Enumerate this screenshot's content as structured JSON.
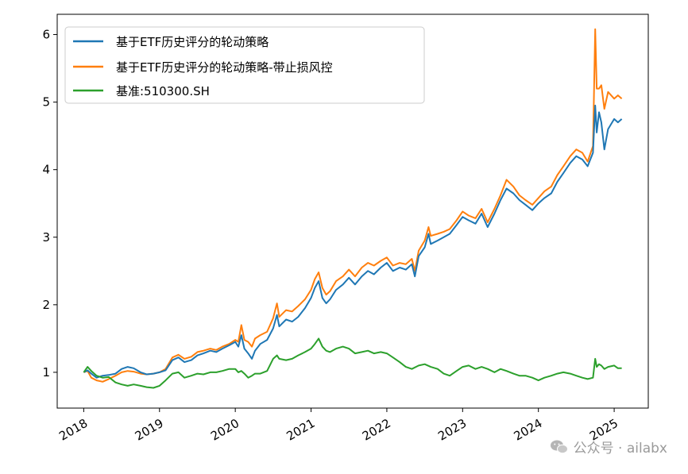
{
  "chart_data": {
    "type": "line",
    "title": "",
    "xlabel": "",
    "ylabel": "",
    "x_ticks": [
      "2018",
      "2019",
      "2020",
      "2021",
      "2022",
      "2023",
      "2024",
      "2025"
    ],
    "y_ticks": [
      "1",
      "2",
      "3",
      "4",
      "5",
      "6"
    ],
    "xlim": [
      2017.65,
      2025.45
    ],
    "ylim": [
      0.47,
      6.3
    ],
    "grid": false,
    "legend_position": "top-left",
    "x_format": "decimal year",
    "series": [
      {
        "name": "基于ETF历史评分的轮动策略",
        "color": "#1f77b4",
        "points": [
          [
            2018.0,
            1.0
          ],
          [
            2018.05,
            1.03
          ],
          [
            2018.1,
            0.98
          ],
          [
            2018.17,
            0.92
          ],
          [
            2018.25,
            0.95
          ],
          [
            2018.33,
            0.96
          ],
          [
            2018.42,
            0.98
          ],
          [
            2018.5,
            1.05
          ],
          [
            2018.58,
            1.08
          ],
          [
            2018.66,
            1.06
          ],
          [
            2018.75,
            1.0
          ],
          [
            2018.83,
            0.97
          ],
          [
            2018.92,
            0.98
          ],
          [
            2019.0,
            1.0
          ],
          [
            2019.08,
            1.03
          ],
          [
            2019.17,
            1.18
          ],
          [
            2019.25,
            1.22
          ],
          [
            2019.33,
            1.15
          ],
          [
            2019.42,
            1.18
          ],
          [
            2019.5,
            1.25
          ],
          [
            2019.58,
            1.28
          ],
          [
            2019.67,
            1.32
          ],
          [
            2019.75,
            1.3
          ],
          [
            2019.83,
            1.35
          ],
          [
            2019.92,
            1.4
          ],
          [
            2020.0,
            1.45
          ],
          [
            2020.04,
            1.38
          ],
          [
            2020.08,
            1.55
          ],
          [
            2020.12,
            1.35
          ],
          [
            2020.17,
            1.28
          ],
          [
            2020.22,
            1.2
          ],
          [
            2020.26,
            1.32
          ],
          [
            2020.33,
            1.42
          ],
          [
            2020.42,
            1.48
          ],
          [
            2020.5,
            1.65
          ],
          [
            2020.55,
            1.85
          ],
          [
            2020.58,
            1.68
          ],
          [
            2020.67,
            1.78
          ],
          [
            2020.75,
            1.75
          ],
          [
            2020.83,
            1.82
          ],
          [
            2020.92,
            1.95
          ],
          [
            2021.0,
            2.1
          ],
          [
            2021.05,
            2.25
          ],
          [
            2021.1,
            2.35
          ],
          [
            2021.15,
            2.1
          ],
          [
            2021.2,
            2.02
          ],
          [
            2021.25,
            2.08
          ],
          [
            2021.33,
            2.22
          ],
          [
            2021.42,
            2.3
          ],
          [
            2021.5,
            2.4
          ],
          [
            2021.58,
            2.3
          ],
          [
            2021.67,
            2.42
          ],
          [
            2021.75,
            2.5
          ],
          [
            2021.83,
            2.45
          ],
          [
            2021.92,
            2.55
          ],
          [
            2022.0,
            2.62
          ],
          [
            2022.08,
            2.5
          ],
          [
            2022.17,
            2.55
          ],
          [
            2022.25,
            2.52
          ],
          [
            2022.33,
            2.6
          ],
          [
            2022.37,
            2.42
          ],
          [
            2022.42,
            2.72
          ],
          [
            2022.5,
            2.85
          ],
          [
            2022.55,
            3.05
          ],
          [
            2022.58,
            2.9
          ],
          [
            2022.67,
            2.95
          ],
          [
            2022.75,
            3.0
          ],
          [
            2022.83,
            3.05
          ],
          [
            2022.92,
            3.18
          ],
          [
            2023.0,
            3.3
          ],
          [
            2023.08,
            3.25
          ],
          [
            2023.17,
            3.2
          ],
          [
            2023.25,
            3.35
          ],
          [
            2023.33,
            3.15
          ],
          [
            2023.42,
            3.35
          ],
          [
            2023.5,
            3.55
          ],
          [
            2023.58,
            3.72
          ],
          [
            2023.67,
            3.65
          ],
          [
            2023.75,
            3.55
          ],
          [
            2023.83,
            3.48
          ],
          [
            2023.92,
            3.4
          ],
          [
            2024.0,
            3.5
          ],
          [
            2024.08,
            3.58
          ],
          [
            2024.17,
            3.65
          ],
          [
            2024.25,
            3.82
          ],
          [
            2024.33,
            3.95
          ],
          [
            2024.42,
            4.1
          ],
          [
            2024.5,
            4.2
          ],
          [
            2024.58,
            4.15
          ],
          [
            2024.65,
            4.05
          ],
          [
            2024.72,
            4.25
          ],
          [
            2024.75,
            4.95
          ],
          [
            2024.77,
            4.55
          ],
          [
            2024.8,
            4.85
          ],
          [
            2024.83,
            4.7
          ],
          [
            2024.87,
            4.3
          ],
          [
            2024.92,
            4.6
          ],
          [
            2025.0,
            4.75
          ],
          [
            2025.05,
            4.7
          ],
          [
            2025.1,
            4.75
          ]
        ]
      },
      {
        "name": "基于ETF历史评分的轮动策略-带止损风控",
        "color": "#ff7f0e",
        "points": [
          [
            2018.0,
            1.0
          ],
          [
            2018.05,
            1.02
          ],
          [
            2018.1,
            0.92
          ],
          [
            2018.17,
            0.88
          ],
          [
            2018.25,
            0.86
          ],
          [
            2018.33,
            0.9
          ],
          [
            2018.42,
            0.95
          ],
          [
            2018.5,
            1.0
          ],
          [
            2018.58,
            1.02
          ],
          [
            2018.66,
            1.01
          ],
          [
            2018.75,
            0.98
          ],
          [
            2018.83,
            0.97
          ],
          [
            2018.92,
            0.98
          ],
          [
            2019.0,
            1.0
          ],
          [
            2019.08,
            1.05
          ],
          [
            2019.17,
            1.22
          ],
          [
            2019.25,
            1.26
          ],
          [
            2019.33,
            1.2
          ],
          [
            2019.42,
            1.23
          ],
          [
            2019.5,
            1.3
          ],
          [
            2019.58,
            1.32
          ],
          [
            2019.67,
            1.35
          ],
          [
            2019.75,
            1.33
          ],
          [
            2019.83,
            1.38
          ],
          [
            2019.92,
            1.42
          ],
          [
            2020.0,
            1.48
          ],
          [
            2020.04,
            1.45
          ],
          [
            2020.08,
            1.7
          ],
          [
            2020.12,
            1.48
          ],
          [
            2020.17,
            1.45
          ],
          [
            2020.22,
            1.38
          ],
          [
            2020.26,
            1.5
          ],
          [
            2020.33,
            1.55
          ],
          [
            2020.42,
            1.6
          ],
          [
            2020.5,
            1.8
          ],
          [
            2020.55,
            2.02
          ],
          [
            2020.58,
            1.82
          ],
          [
            2020.67,
            1.92
          ],
          [
            2020.75,
            1.9
          ],
          [
            2020.83,
            1.98
          ],
          [
            2020.92,
            2.08
          ],
          [
            2021.0,
            2.22
          ],
          [
            2021.05,
            2.38
          ],
          [
            2021.1,
            2.48
          ],
          [
            2021.15,
            2.25
          ],
          [
            2021.2,
            2.15
          ],
          [
            2021.25,
            2.2
          ],
          [
            2021.33,
            2.35
          ],
          [
            2021.42,
            2.42
          ],
          [
            2021.5,
            2.52
          ],
          [
            2021.58,
            2.42
          ],
          [
            2021.67,
            2.55
          ],
          [
            2021.75,
            2.62
          ],
          [
            2021.83,
            2.58
          ],
          [
            2021.92,
            2.65
          ],
          [
            2022.0,
            2.7
          ],
          [
            2022.08,
            2.58
          ],
          [
            2022.17,
            2.62
          ],
          [
            2022.25,
            2.6
          ],
          [
            2022.33,
            2.68
          ],
          [
            2022.37,
            2.5
          ],
          [
            2022.42,
            2.8
          ],
          [
            2022.5,
            2.95
          ],
          [
            2022.55,
            3.15
          ],
          [
            2022.58,
            3.02
          ],
          [
            2022.67,
            3.05
          ],
          [
            2022.75,
            3.08
          ],
          [
            2022.83,
            3.12
          ],
          [
            2022.92,
            3.25
          ],
          [
            2023.0,
            3.38
          ],
          [
            2023.08,
            3.32
          ],
          [
            2023.17,
            3.28
          ],
          [
            2023.25,
            3.42
          ],
          [
            2023.33,
            3.22
          ],
          [
            2023.42,
            3.42
          ],
          [
            2023.5,
            3.62
          ],
          [
            2023.58,
            3.85
          ],
          [
            2023.67,
            3.75
          ],
          [
            2023.75,
            3.62
          ],
          [
            2023.83,
            3.55
          ],
          [
            2023.92,
            3.48
          ],
          [
            2024.0,
            3.58
          ],
          [
            2024.08,
            3.68
          ],
          [
            2024.17,
            3.75
          ],
          [
            2024.25,
            3.92
          ],
          [
            2024.33,
            4.05
          ],
          [
            2024.42,
            4.2
          ],
          [
            2024.5,
            4.3
          ],
          [
            2024.58,
            4.25
          ],
          [
            2024.65,
            4.12
          ],
          [
            2024.72,
            4.35
          ],
          [
            2024.75,
            6.08
          ],
          [
            2024.77,
            5.2
          ],
          [
            2024.8,
            5.2
          ],
          [
            2024.83,
            5.25
          ],
          [
            2024.87,
            4.9
          ],
          [
            2024.92,
            5.15
          ],
          [
            2025.0,
            5.05
          ],
          [
            2025.05,
            5.1
          ],
          [
            2025.1,
            5.05
          ]
        ]
      },
      {
        "name": "基准:510300.SH",
        "color": "#2ca02c",
        "points": [
          [
            2018.0,
            1.0
          ],
          [
            2018.05,
            1.08
          ],
          [
            2018.1,
            1.02
          ],
          [
            2018.17,
            0.95
          ],
          [
            2018.25,
            0.92
          ],
          [
            2018.33,
            0.93
          ],
          [
            2018.42,
            0.85
          ],
          [
            2018.5,
            0.82
          ],
          [
            2018.58,
            0.8
          ],
          [
            2018.66,
            0.82
          ],
          [
            2018.75,
            0.8
          ],
          [
            2018.83,
            0.78
          ],
          [
            2018.92,
            0.77
          ],
          [
            2019.0,
            0.8
          ],
          [
            2019.08,
            0.88
          ],
          [
            2019.17,
            0.98
          ],
          [
            2019.25,
            1.0
          ],
          [
            2019.33,
            0.92
          ],
          [
            2019.42,
            0.95
          ],
          [
            2019.5,
            0.98
          ],
          [
            2019.58,
            0.97
          ],
          [
            2019.67,
            1.0
          ],
          [
            2019.75,
            1.0
          ],
          [
            2019.83,
            1.02
          ],
          [
            2019.92,
            1.05
          ],
          [
            2020.0,
            1.05
          ],
          [
            2020.04,
            1.0
          ],
          [
            2020.08,
            1.02
          ],
          [
            2020.12,
            0.98
          ],
          [
            2020.17,
            0.92
          ],
          [
            2020.22,
            0.95
          ],
          [
            2020.26,
            0.98
          ],
          [
            2020.33,
            0.98
          ],
          [
            2020.42,
            1.02
          ],
          [
            2020.5,
            1.2
          ],
          [
            2020.55,
            1.25
          ],
          [
            2020.58,
            1.2
          ],
          [
            2020.67,
            1.18
          ],
          [
            2020.75,
            1.2
          ],
          [
            2020.83,
            1.25
          ],
          [
            2020.92,
            1.3
          ],
          [
            2021.0,
            1.35
          ],
          [
            2021.05,
            1.42
          ],
          [
            2021.1,
            1.5
          ],
          [
            2021.15,
            1.38
          ],
          [
            2021.2,
            1.32
          ],
          [
            2021.25,
            1.3
          ],
          [
            2021.33,
            1.35
          ],
          [
            2021.42,
            1.38
          ],
          [
            2021.5,
            1.35
          ],
          [
            2021.58,
            1.28
          ],
          [
            2021.67,
            1.3
          ],
          [
            2021.75,
            1.32
          ],
          [
            2021.83,
            1.28
          ],
          [
            2021.92,
            1.3
          ],
          [
            2022.0,
            1.28
          ],
          [
            2022.08,
            1.22
          ],
          [
            2022.17,
            1.15
          ],
          [
            2022.25,
            1.08
          ],
          [
            2022.33,
            1.05
          ],
          [
            2022.42,
            1.1
          ],
          [
            2022.5,
            1.12
          ],
          [
            2022.58,
            1.08
          ],
          [
            2022.67,
            1.05
          ],
          [
            2022.75,
            0.98
          ],
          [
            2022.83,
            0.95
          ],
          [
            2022.92,
            1.02
          ],
          [
            2023.0,
            1.08
          ],
          [
            2023.08,
            1.1
          ],
          [
            2023.17,
            1.05
          ],
          [
            2023.25,
            1.08
          ],
          [
            2023.33,
            1.05
          ],
          [
            2023.42,
            1.0
          ],
          [
            2023.5,
            1.05
          ],
          [
            2023.58,
            1.02
          ],
          [
            2023.67,
            0.98
          ],
          [
            2023.75,
            0.95
          ],
          [
            2023.83,
            0.95
          ],
          [
            2023.92,
            0.92
          ],
          [
            2024.0,
            0.88
          ],
          [
            2024.08,
            0.92
          ],
          [
            2024.17,
            0.95
          ],
          [
            2024.25,
            0.98
          ],
          [
            2024.33,
            1.0
          ],
          [
            2024.42,
            0.98
          ],
          [
            2024.5,
            0.95
          ],
          [
            2024.58,
            0.92
          ],
          [
            2024.65,
            0.9
          ],
          [
            2024.72,
            0.92
          ],
          [
            2024.75,
            1.2
          ],
          [
            2024.77,
            1.08
          ],
          [
            2024.8,
            1.12
          ],
          [
            2024.83,
            1.1
          ],
          [
            2024.87,
            1.05
          ],
          [
            2024.92,
            1.08
          ],
          [
            2025.0,
            1.1
          ],
          [
            2025.05,
            1.06
          ],
          [
            2025.1,
            1.06
          ]
        ]
      }
    ]
  },
  "watermark": {
    "icon": "wechat-icon",
    "text": "公众号 · ailabx"
  }
}
